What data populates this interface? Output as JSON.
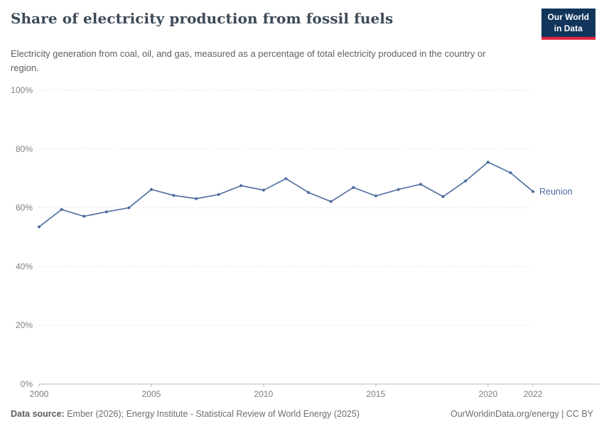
{
  "header": {
    "title": "Share of electricity production from fossil fuels",
    "subtitle": "Electricity generation from coal, oil, and gas, measured as a percentage of total electricity produced in the country or region.",
    "logo_line1": "Our World",
    "logo_line2": "in Data"
  },
  "chart_data": {
    "type": "line",
    "title": "Share of electricity production from fossil fuels",
    "ylabel": "",
    "xlabel": "",
    "xlim": [
      2000,
      2022
    ],
    "ylim": [
      0,
      100
    ],
    "yticks": [
      0,
      20,
      40,
      60,
      80,
      100
    ],
    "ytick_suffix": "%",
    "xticks": [
      2000,
      2005,
      2010,
      2015,
      2020,
      2022
    ],
    "grid": "horizontal-dashed",
    "legend_position": "end-of-line-label",
    "series": [
      {
        "name": "Reunion",
        "color": "#4c6a9c",
        "x": [
          2000,
          2001,
          2002,
          2003,
          2004,
          2005,
          2006,
          2007,
          2008,
          2009,
          2010,
          2011,
          2012,
          2013,
          2014,
          2015,
          2016,
          2017,
          2018,
          2019,
          2020,
          2021,
          2022
        ],
        "values": [
          53.5,
          59.4,
          57.1,
          58.6,
          60.0,
          66.2,
          64.2,
          63.1,
          64.5,
          67.5,
          66.0,
          69.9,
          65.2,
          62.1,
          66.9,
          64.0,
          66.2,
          68.0,
          63.8,
          69.1,
          75.5,
          71.9,
          65.5
        ]
      }
    ]
  },
  "footer": {
    "source_label": "Data source:",
    "source_text": "Ember (2026); Energy Institute - Statistical Review of World Energy (2025)",
    "link_text": "OurWorldinData.org/energy | CC BY"
  }
}
